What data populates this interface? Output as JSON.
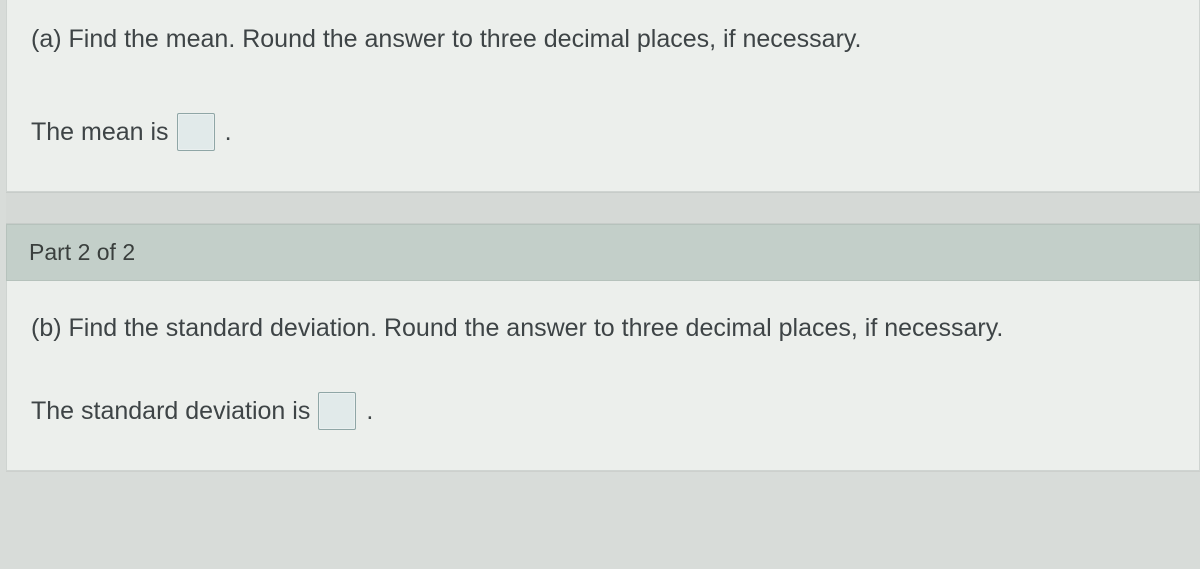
{
  "part_a": {
    "prompt": "(a) Find the mean. Round the answer to three decimal places, if necessary.",
    "answer_label": "The mean is",
    "answer_value": "",
    "period": "."
  },
  "part_header": "Part 2 of 2",
  "part_b": {
    "prompt": "(b) Find the standard deviation. Round the answer to three decimal places, if necessary.",
    "answer_label": "The standard deviation is",
    "answer_value": "",
    "period": "."
  },
  "colors": {
    "page_bg": "#d8dcd9",
    "panel_bg": "#ecefec",
    "header_bg": "#c3cfc9",
    "text": "#3e4446",
    "input_border": "#8fa6a6",
    "input_bg": "#e1eaea"
  }
}
